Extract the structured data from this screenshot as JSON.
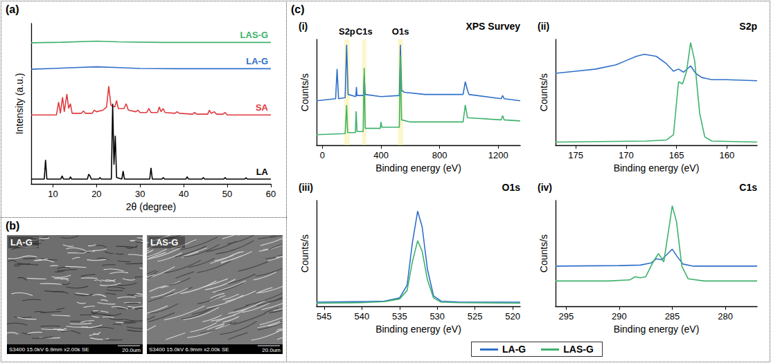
{
  "panel_labels": {
    "a": "(a)",
    "c": "(c)"
  },
  "chart_data": [
    {
      "type": "line",
      "xlabel": "2θ (degree)",
      "ylabel": "Intensity (a.u.)",
      "xlim": [
        5,
        60
      ],
      "xticks": [
        10,
        20,
        30,
        40,
        50,
        60
      ],
      "ylim": [
        0,
        100
      ],
      "tick_labels": "x",
      "series": [
        {
          "name": "LAS-G",
          "color": "#3db26b",
          "x": [
            5,
            12,
            20,
            25,
            35,
            60
          ],
          "values": [
            88,
            88.3,
            89,
            88.6,
            88.2,
            88.2
          ]
        },
        {
          "name": "LA-G",
          "color": "#2e6fc9",
          "x": [
            5,
            10,
            15,
            20,
            25,
            30,
            40,
            50,
            60
          ],
          "values": [
            71.5,
            72,
            72.5,
            73,
            72.5,
            72,
            71.8,
            71.8,
            71.8
          ]
        },
        {
          "name": "SA",
          "color": "#e0393e",
          "x": [
            5,
            10.8,
            11.3,
            11.7,
            12.2,
            12.6,
            13.2,
            13.6,
            14,
            14.4,
            16.5,
            17,
            17.5,
            19,
            19.5,
            20,
            21.5,
            22.3,
            22.8,
            23.3,
            24.2,
            24.6,
            25,
            26.3,
            26.8,
            27.3,
            29,
            29.5,
            30,
            31.5,
            32,
            32.5,
            34,
            34.4,
            34.8,
            35.3,
            35.7,
            38,
            38.5,
            39,
            42,
            42.5,
            43,
            45.5,
            45.9,
            46.3,
            47,
            47.5,
            49,
            49.5,
            50,
            60
          ],
          "values": [
            43,
            43,
            51,
            44,
            54,
            45,
            56,
            47,
            50,
            44,
            44,
            45.5,
            44,
            44,
            46,
            45,
            46,
            48,
            61,
            49,
            48,
            52,
            47,
            47,
            50,
            46,
            45,
            46,
            44.5,
            44.5,
            47,
            44.5,
            44.5,
            48,
            45,
            47,
            44.5,
            44,
            45,
            44,
            43.5,
            44.5,
            43.5,
            43.5,
            46,
            44,
            45,
            43.5,
            43.5,
            44.5,
            43,
            43
          ]
        },
        {
          "name": "LA",
          "color": "#000000",
          "x": [
            5,
            8,
            8.3,
            8.6,
            11.8,
            12.1,
            12.4,
            13.8,
            14,
            14.3,
            17.9,
            18.2,
            18.5,
            18.8,
            20.5,
            20.8,
            21.1,
            23.4,
            23.7,
            24,
            24.3,
            24.6,
            25.8,
            26.1,
            26.4,
            32.2,
            32.5,
            32.8,
            35,
            35.3,
            35.6,
            40.5,
            40.8,
            41.1,
            44.2,
            44.5,
            44.8,
            49.2,
            49.5,
            49.8,
            54,
            54.3,
            54.6,
            60
          ],
          "values": [
            3,
            3,
            15,
            3,
            3,
            5,
            3,
            3,
            4.5,
            3,
            3,
            6,
            5,
            3,
            3,
            4,
            3,
            3,
            50,
            12,
            30,
            4,
            3,
            8,
            3,
            3,
            10,
            3,
            3,
            4,
            3,
            3,
            4.5,
            3,
            3,
            4,
            3,
            3,
            4,
            3,
            3,
            3.8,
            3,
            3
          ]
        }
      ]
    },
    {
      "type": "line",
      "label": "(i)",
      "title": "XPS Survey",
      "xlabel": "Binding energy (eV)",
      "ylabel": "Counts/s",
      "xlim": [
        -40,
        1350
      ],
      "xticks": [
        0,
        400,
        800,
        1200
      ],
      "ylim": [
        0,
        100
      ],
      "tick_labels": "x",
      "legend": "bottom",
      "highlights": [
        {
          "label": "S2p",
          "range": [
            150,
            185
          ]
        },
        {
          "label": "C1s",
          "range": [
            270,
            300
          ]
        },
        {
          "label": "O1s",
          "range": [
            515,
            550
          ]
        }
      ],
      "series": [
        {
          "name": "LA-G",
          "color": "#2e6fc9",
          "x": [
            -40,
            90,
            100,
            110,
            155,
            165,
            175,
            228,
            232,
            236,
            280,
            285,
            292,
            400,
            525,
            532,
            540,
            560,
            700,
            960,
            975,
            990,
            1000,
            1220,
            1230,
            1240,
            1350
          ],
          "values": [
            42,
            44,
            72,
            44,
            45,
            95,
            48,
            46,
            55,
            47,
            47,
            66,
            48,
            46,
            47,
            95,
            52,
            50,
            48,
            48,
            60,
            52,
            48,
            44,
            47,
            44,
            42
          ]
        },
        {
          "name": "LAS-G",
          "color": "#3db26b",
          "x": [
            -40,
            155,
            165,
            172,
            225,
            230,
            236,
            278,
            285,
            292,
            395,
            400,
            405,
            525,
            532,
            540,
            600,
            960,
            975,
            990,
            1220,
            1230,
            1240,
            1350
          ],
          "values": [
            10,
            11,
            38,
            12,
            12,
            32,
            13,
            13,
            73,
            16,
            16,
            22,
            17,
            17,
            85,
            24,
            22,
            22,
            38,
            26,
            24,
            28,
            24,
            23
          ]
        }
      ]
    },
    {
      "type": "line",
      "label": "(ii)",
      "title": "S2p",
      "xlabel": "Binding energy (eV)",
      "ylabel": "Counts/s",
      "xlim": [
        177,
        157
      ],
      "xticks": [
        175,
        170,
        165,
        160
      ],
      "ylim": [
        0,
        100
      ],
      "tick_labels": "x",
      "legend": "bottom",
      "series": [
        {
          "name": "LA-G",
          "color": "#2e6fc9",
          "x": [
            177,
            175,
            173,
            171,
            170,
            169,
            168.2,
            167,
            166,
            165.3,
            164.8,
            164.3,
            163.6,
            163.1,
            162.5,
            161.5,
            160,
            157
          ],
          "values": [
            68,
            70,
            72,
            76,
            80,
            84,
            86,
            84,
            77,
            70,
            72,
            69,
            75,
            68,
            64,
            62,
            62,
            61
          ]
        },
        {
          "name": "LAS-G",
          "color": "#3db26b",
          "x": [
            177,
            168,
            166,
            165.3,
            164.8,
            164.4,
            164,
            163.6,
            163.2,
            162.7,
            162.2,
            161.5,
            157
          ],
          "values": [
            3,
            4,
            5,
            10,
            60,
            58,
            70,
            97,
            80,
            30,
            8,
            4,
            3
          ]
        }
      ]
    },
    {
      "type": "line",
      "label": "(iii)",
      "title": "O1s",
      "xlabel": "Binding energy (eV)",
      "ylabel": "Counts/s",
      "xlim": [
        546,
        519
      ],
      "xticks": [
        545,
        540,
        535,
        530,
        525,
        520
      ],
      "ylim": [
        0,
        100
      ],
      "tick_labels": "x",
      "legend": "bottom",
      "series": [
        {
          "name": "LA-G",
          "color": "#2e6fc9",
          "x": [
            546,
            540,
            537,
            535,
            534,
            533.3,
            532.6,
            532,
            531.3,
            530.5,
            529.5,
            527,
            519
          ],
          "values": [
            4,
            4.5,
            5,
            8,
            20,
            60,
            90,
            75,
            35,
            10,
            5,
            4,
            4
          ]
        },
        {
          "name": "LAS-G",
          "color": "#3db26b",
          "x": [
            546,
            540,
            537,
            535,
            534,
            533.3,
            532.6,
            532,
            531.3,
            530.5,
            529.5,
            527,
            519
          ],
          "values": [
            3,
            3.5,
            4.5,
            7,
            15,
            42,
            62,
            52,
            25,
            8,
            4,
            3.5,
            3
          ]
        }
      ]
    },
    {
      "type": "line",
      "label": "(iv)",
      "title": "C1s",
      "xlabel": "Binding energy (eV)",
      "ylabel": "Counts/s",
      "xlim": [
        296,
        277
      ],
      "xticks": [
        295,
        290,
        285,
        280
      ],
      "ylim": [
        0,
        100
      ],
      "tick_labels": "x",
      "legend": "bottom",
      "series": [
        {
          "name": "LA-G",
          "color": "#2e6fc9",
          "x": [
            296,
            290,
            288,
            287,
            286.5,
            286,
            285.4,
            285,
            284.6,
            284,
            283,
            277
          ],
          "values": [
            38,
            38.5,
            39,
            41,
            45,
            44,
            50,
            54,
            48,
            40,
            38,
            38
          ]
        },
        {
          "name": "LAS-G",
          "color": "#3db26b",
          "x": [
            296,
            291,
            289,
            288.5,
            288,
            287.5,
            286.8,
            286.3,
            285.8,
            285.3,
            285,
            284.6,
            284.1,
            283.5,
            282,
            277
          ],
          "values": [
            24,
            24,
            25,
            28,
            27,
            28,
            42,
            50,
            42,
            75,
            95,
            80,
            38,
            26,
            24,
            24
          ]
        }
      ]
    }
  ],
  "images": {
    "label": "(b)",
    "items": [
      {
        "name": "LA-G",
        "caption": "S3400 15.0kV 6.9mm x2.00k SE",
        "scale": "20.0um"
      },
      {
        "name": "LAS-G",
        "caption": "S3400 15.0kV 6.9mm x2.00k SE",
        "scale": "20.0um"
      }
    ]
  }
}
